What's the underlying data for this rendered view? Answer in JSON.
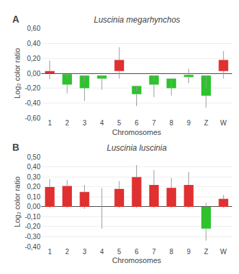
{
  "chart_data": [
    {
      "type": "bar",
      "title": "Luscinia megarhynchos",
      "annotations": [
        "A"
      ],
      "xlabel": "Chromosomes",
      "ylabel": "Log₂ color ratio",
      "categories": [
        "1",
        "2",
        "3",
        "4",
        "5",
        "6",
        "7",
        "8",
        "9",
        "Z",
        "W"
      ],
      "bar_bottom": [
        0.0,
        -0.15,
        -0.2,
        -0.07,
        0.03,
        -0.28,
        -0.15,
        -0.2,
        -0.05,
        -0.3,
        0.03
      ],
      "bar_top": [
        0.03,
        -0.01,
        -0.03,
        -0.03,
        0.18,
        -0.17,
        -0.03,
        -0.07,
        -0.02,
        -0.03,
        0.18
      ],
      "err_low": [
        -0.08,
        -0.27,
        -0.37,
        -0.22,
        -0.07,
        -0.44,
        -0.32,
        -0.3,
        -0.13,
        -0.46,
        -0.07
      ],
      "err_high": [
        0.17,
        -0.07,
        -0.12,
        -0.07,
        0.35,
        -0.24,
        -0.1,
        -0.19,
        0.06,
        -0.19,
        0.3
      ],
      "colors": [
        "#e03030",
        "#2ec22e",
        "#2ec22e",
        "#2ec22e",
        "#e03030",
        "#2ec22e",
        "#2ec22e",
        "#2ec22e",
        "#2ec22e",
        "#2ec22e",
        "#e03030"
      ],
      "ylim": [
        -0.6,
        0.6
      ],
      "yticks": [
        {
          "value": -0.6,
          "label": "-0,60"
        },
        {
          "value": -0.4,
          "label": "-0,40"
        },
        {
          "value": -0.2,
          "label": "-0,20"
        },
        {
          "value": 0.0,
          "label": "0,00"
        },
        {
          "value": 0.2,
          "label": "0,20"
        },
        {
          "value": 0.4,
          "label": "0,40"
        },
        {
          "value": 0.6,
          "label": "0,60"
        }
      ],
      "grid": true
    },
    {
      "type": "bar",
      "title": "Luscinia luscinia",
      "annotations": [
        "B"
      ],
      "xlabel": "Chromosomes",
      "ylabel": "Log₂ color ratio",
      "categories": [
        "1",
        "2",
        "3",
        "4",
        "5",
        "6",
        "7",
        "8",
        "9",
        "Z",
        "W"
      ],
      "bar_bottom": [
        0.0,
        0.0,
        0.0,
        0.0,
        0.0,
        0.0,
        0.0,
        0.0,
        0.0,
        -0.22,
        0.0
      ],
      "bar_top": [
        0.2,
        0.21,
        0.15,
        0.0,
        0.18,
        0.3,
        0.22,
        0.19,
        0.22,
        0.0,
        0.08
      ],
      "err_low": [
        -0.01,
        -0.01,
        -0.02,
        -0.22,
        -0.01,
        -0.01,
        -0.01,
        -0.01,
        -0.01,
        -0.34,
        -0.01
      ],
      "err_high": [
        0.28,
        0.27,
        0.22,
        0.19,
        0.26,
        0.42,
        0.37,
        0.29,
        0.35,
        0.04,
        0.12
      ],
      "colors": [
        "#e03030",
        "#e03030",
        "#e03030",
        "#e03030",
        "#e03030",
        "#e03030",
        "#e03030",
        "#e03030",
        "#e03030",
        "#2ec22e",
        "#e03030"
      ],
      "ylim": [
        -0.4,
        0.5
      ],
      "yticks": [
        {
          "value": -0.4,
          "label": "-0,40"
        },
        {
          "value": -0.3,
          "label": "-0,30"
        },
        {
          "value": -0.2,
          "label": "-0,20"
        },
        {
          "value": -0.1,
          "label": "-0,10"
        },
        {
          "value": 0.0,
          "label": "0,00"
        },
        {
          "value": 0.1,
          "label": "0,10"
        },
        {
          "value": 0.2,
          "label": "0,20"
        },
        {
          "value": 0.3,
          "label": "0,30"
        },
        {
          "value": 0.4,
          "label": "0,40"
        },
        {
          "value": 0.5,
          "label": "0,50"
        }
      ],
      "grid": true
    }
  ]
}
